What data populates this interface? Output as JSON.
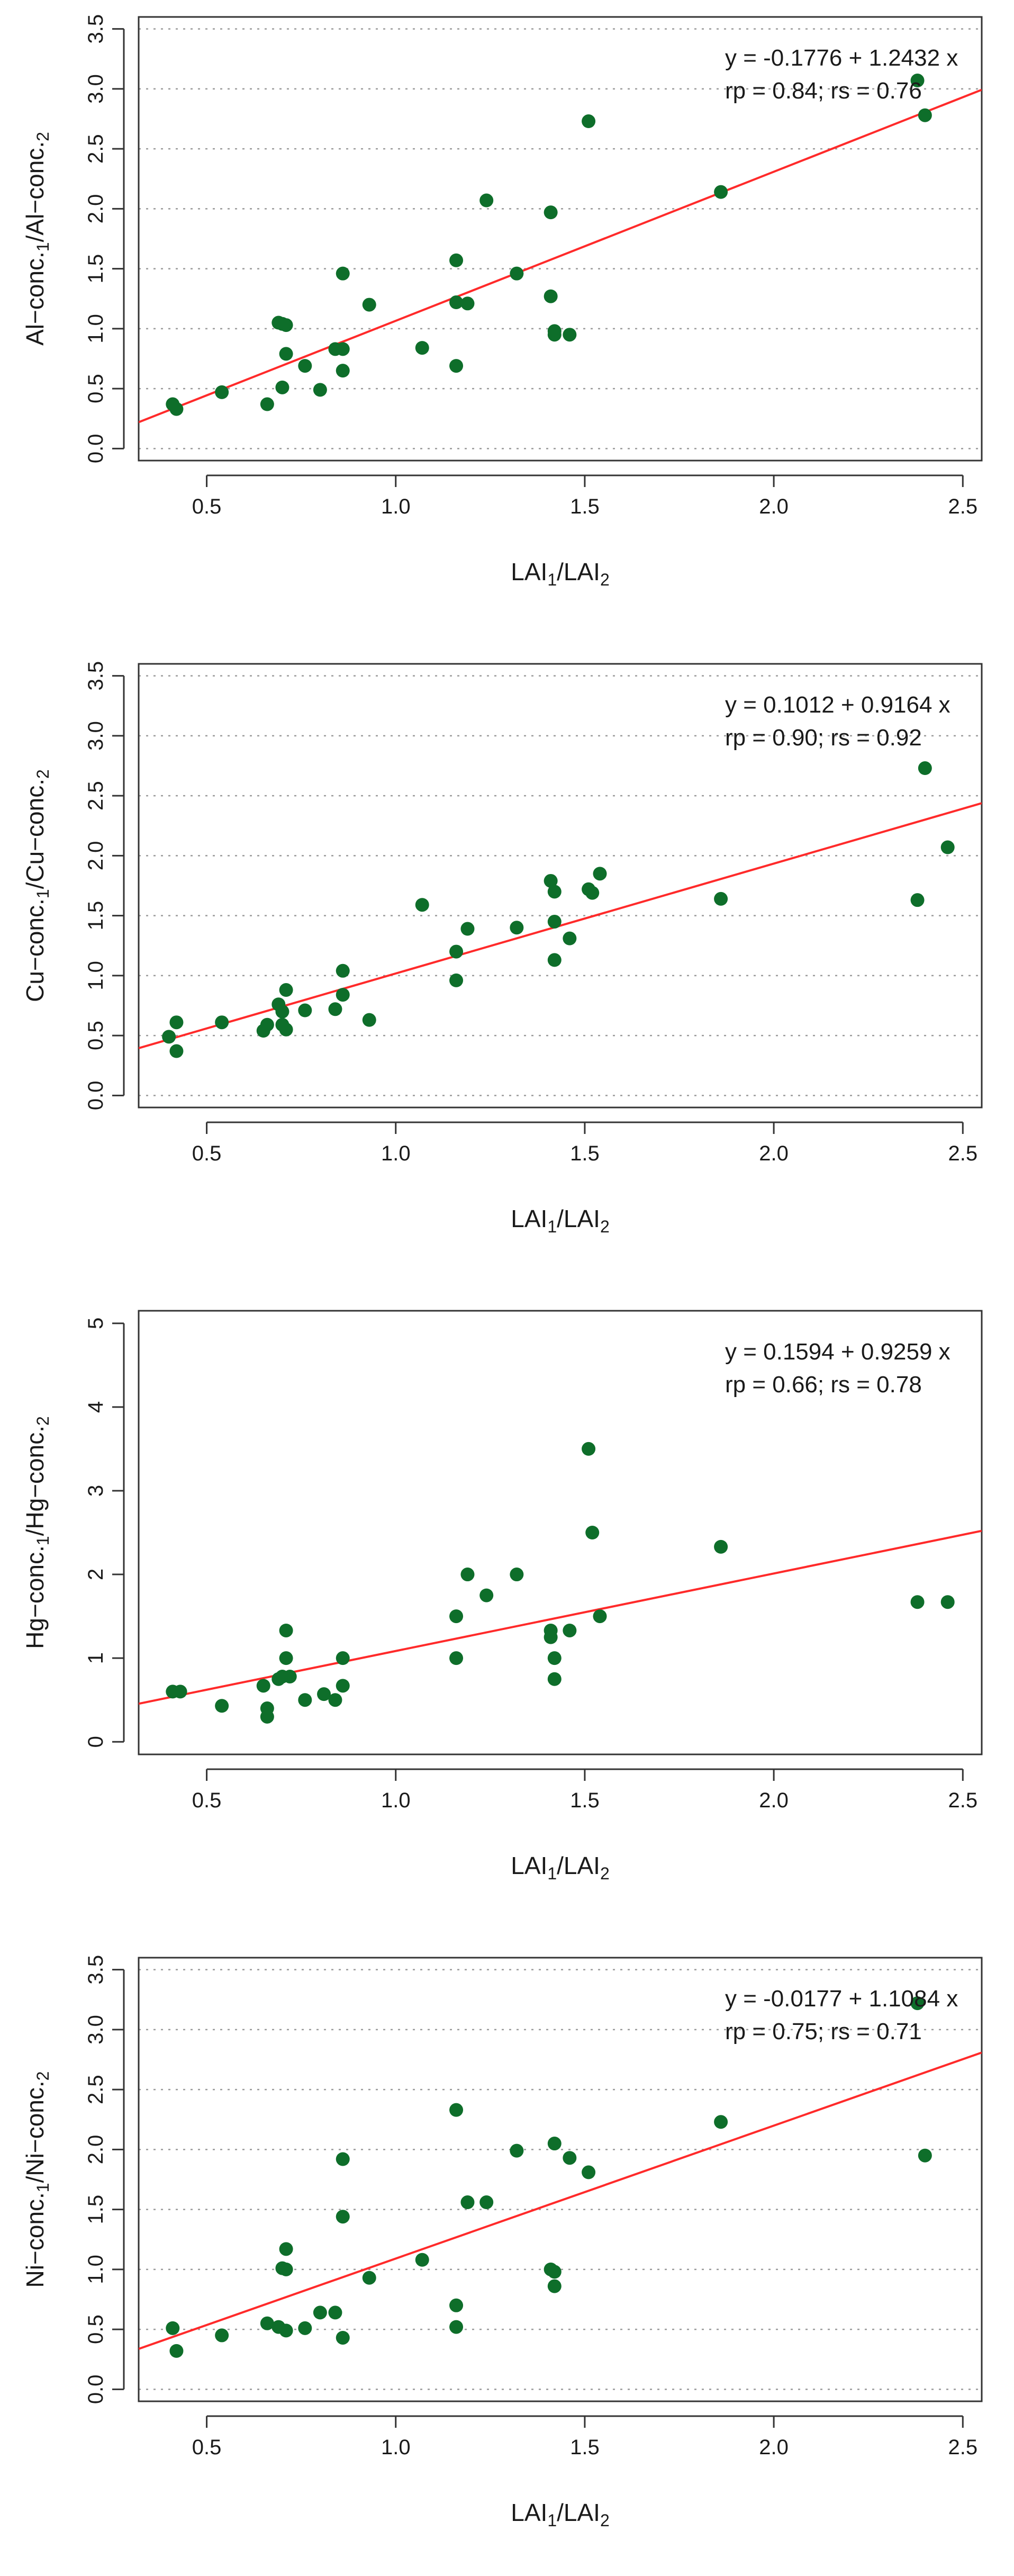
{
  "chart_data": [
    {
      "type": "scatter",
      "xlabel": {
        "base": "LAI",
        "num_sub": "1",
        "sep": "/",
        "den": "LAI",
        "den_sub": "2"
      },
      "ylabel": {
        "num": "Al−conc.",
        "num_sub": "1",
        "sep": "/",
        "den": "Al−conc.",
        "den_sub": "2"
      },
      "xlim": [
        0.32,
        2.55
      ],
      "ylim": [
        -0.1,
        3.6
      ],
      "x_ticks": [
        0.5,
        1.0,
        1.5,
        2.0,
        2.5
      ],
      "x_tick_labels": [
        "0.5",
        "1.0",
        "1.5",
        "2.0",
        "2.5"
      ],
      "y_ticks": [
        0.0,
        0.5,
        1.0,
        1.5,
        2.0,
        2.5,
        3.0,
        3.5
      ],
      "y_tick_labels": [
        "0.0",
        "0.5",
        "1.0",
        "1.5",
        "2.0",
        "2.5",
        "3.0",
        "3.5"
      ],
      "grid": "horizontal-dotted",
      "annotation": [
        "y = -0.1776 + 1.2432 x",
        "rp = 0.84; rs = 0.76"
      ],
      "fit": {
        "intercept": -0.1776,
        "slope": 1.2432
      },
      "points": [
        [
          0.41,
          0.37
        ],
        [
          0.42,
          0.33
        ],
        [
          0.54,
          0.47
        ],
        [
          0.66,
          0.37
        ],
        [
          0.69,
          1.05
        ],
        [
          0.7,
          1.04
        ],
        [
          0.71,
          1.03
        ],
        [
          0.7,
          0.51
        ],
        [
          0.71,
          0.79
        ],
        [
          0.76,
          0.69
        ],
        [
          0.8,
          0.49
        ],
        [
          0.84,
          0.83
        ],
        [
          0.86,
          0.83
        ],
        [
          0.86,
          0.65
        ],
        [
          0.86,
          1.46
        ],
        [
          0.93,
          1.2
        ],
        [
          1.07,
          0.84
        ],
        [
          1.16,
          1.57
        ],
        [
          1.16,
          1.22
        ],
        [
          1.16,
          0.69
        ],
        [
          1.19,
          1.21
        ],
        [
          1.24,
          2.07
        ],
        [
          1.32,
          1.46
        ],
        [
          1.41,
          1.97
        ],
        [
          1.41,
          1.27
        ],
        [
          1.42,
          0.98
        ],
        [
          1.42,
          0.95
        ],
        [
          1.46,
          0.95
        ],
        [
          1.51,
          2.73
        ],
        [
          1.86,
          2.14
        ],
        [
          2.38,
          3.07
        ],
        [
          2.4,
          2.78
        ]
      ]
    },
    {
      "type": "scatter",
      "xlabel": {
        "base": "LAI",
        "num_sub": "1",
        "sep": "/",
        "den": "LAI",
        "den_sub": "2"
      },
      "ylabel": {
        "num": "Cu−conc.",
        "num_sub": "1",
        "sep": "/",
        "den": "Cu−conc.",
        "den_sub": "2"
      },
      "xlim": [
        0.32,
        2.55
      ],
      "ylim": [
        -0.1,
        3.6
      ],
      "x_ticks": [
        0.5,
        1.0,
        1.5,
        2.0,
        2.5
      ],
      "x_tick_labels": [
        "0.5",
        "1.0",
        "1.5",
        "2.0",
        "2.5"
      ],
      "y_ticks": [
        0.0,
        0.5,
        1.0,
        1.5,
        2.0,
        2.5,
        3.0,
        3.5
      ],
      "y_tick_labels": [
        "0.0",
        "0.5",
        "1.0",
        "1.5",
        "2.0",
        "2.5",
        "3.0",
        "3.5"
      ],
      "grid": "horizontal-dotted",
      "annotation": [
        "y = 0.1012 + 0.9164 x",
        "rp = 0.90; rs = 0.92"
      ],
      "fit": {
        "intercept": 0.1012,
        "slope": 0.9164
      },
      "points": [
        [
          0.4,
          0.49
        ],
        [
          0.42,
          0.61
        ],
        [
          0.42,
          0.37
        ],
        [
          0.54,
          0.61
        ],
        [
          0.65,
          0.54
        ],
        [
          0.66,
          0.59
        ],
        [
          0.69,
          0.76
        ],
        [
          0.7,
          0.7
        ],
        [
          0.7,
          0.59
        ],
        [
          0.71,
          0.88
        ],
        [
          0.71,
          0.55
        ],
        [
          0.76,
          0.71
        ],
        [
          0.84,
          0.72
        ],
        [
          0.86,
          1.04
        ],
        [
          0.86,
          0.84
        ],
        [
          0.93,
          0.63
        ],
        [
          1.07,
          1.59
        ],
        [
          1.16,
          1.2
        ],
        [
          1.16,
          0.96
        ],
        [
          1.19,
          1.39
        ],
        [
          1.32,
          1.4
        ],
        [
          1.41,
          1.79
        ],
        [
          1.42,
          1.7
        ],
        [
          1.42,
          1.45
        ],
        [
          1.42,
          1.13
        ],
        [
          1.46,
          1.31
        ],
        [
          1.51,
          1.72
        ],
        [
          1.52,
          1.69
        ],
        [
          1.54,
          1.85
        ],
        [
          1.86,
          1.64
        ],
        [
          2.38,
          1.63
        ],
        [
          2.4,
          2.73
        ],
        [
          2.46,
          2.07
        ]
      ]
    },
    {
      "type": "scatter",
      "xlabel": {
        "base": "LAI",
        "num_sub": "1",
        "sep": "/",
        "den": "LAI",
        "den_sub": "2"
      },
      "ylabel": {
        "num": "Hg−conc.",
        "num_sub": "1",
        "sep": "/",
        "den": "Hg−conc.",
        "den_sub": "2"
      },
      "xlim": [
        0.32,
        2.55
      ],
      "ylim": [
        -0.15,
        5.15
      ],
      "x_ticks": [
        0.5,
        1.0,
        1.5,
        2.0,
        2.5
      ],
      "x_tick_labels": [
        "0.5",
        "1.0",
        "1.5",
        "2.0",
        "2.5"
      ],
      "y_ticks": [
        0,
        1,
        2,
        3,
        4,
        5
      ],
      "y_tick_labels": [
        "0",
        "1",
        "2",
        "3",
        "4",
        "5"
      ],
      "grid": "none",
      "annotation": [
        "y = 0.1594 + 0.9259 x",
        "rp = 0.66; rs = 0.78"
      ],
      "fit": {
        "intercept": 0.1594,
        "slope": 0.9259
      },
      "points": [
        [
          0.41,
          0.6
        ],
        [
          0.43,
          0.6
        ],
        [
          0.54,
          0.43
        ],
        [
          0.65,
          0.67
        ],
        [
          0.66,
          0.4
        ],
        [
          0.66,
          0.3
        ],
        [
          0.69,
          0.75
        ],
        [
          0.7,
          0.78
        ],
        [
          0.71,
          1.33
        ],
        [
          0.71,
          1.0
        ],
        [
          0.72,
          0.78
        ],
        [
          0.76,
          0.5
        ],
        [
          0.81,
          0.57
        ],
        [
          0.84,
          0.5
        ],
        [
          0.86,
          1.0
        ],
        [
          0.86,
          0.67
        ],
        [
          1.16,
          1.5
        ],
        [
          1.16,
          1.0
        ],
        [
          1.19,
          2.0
        ],
        [
          1.24,
          1.75
        ],
        [
          1.32,
          2.0
        ],
        [
          1.41,
          1.33
        ],
        [
          1.41,
          1.25
        ],
        [
          1.42,
          1.0
        ],
        [
          1.42,
          0.75
        ],
        [
          1.46,
          1.33
        ],
        [
          1.51,
          3.5
        ],
        [
          1.52,
          2.5
        ],
        [
          1.54,
          1.5
        ],
        [
          1.86,
          2.33
        ],
        [
          2.38,
          1.67
        ],
        [
          2.46,
          1.67
        ]
      ]
    },
    {
      "type": "scatter",
      "xlabel": {
        "base": "LAI",
        "num_sub": "1",
        "sep": "/",
        "den": "LAI",
        "den_sub": "2"
      },
      "ylabel": {
        "num": "Ni−conc.",
        "num_sub": "1",
        "sep": "/",
        "den": "Ni−conc.",
        "den_sub": "2"
      },
      "xlim": [
        0.32,
        2.55
      ],
      "ylim": [
        -0.1,
        3.6
      ],
      "x_ticks": [
        0.5,
        1.0,
        1.5,
        2.0,
        2.5
      ],
      "x_tick_labels": [
        "0.5",
        "1.0",
        "1.5",
        "2.0",
        "2.5"
      ],
      "y_ticks": [
        0.0,
        0.5,
        1.0,
        1.5,
        2.0,
        2.5,
        3.0,
        3.5
      ],
      "y_tick_labels": [
        "0.0",
        "0.5",
        "1.0",
        "1.5",
        "2.0",
        "2.5",
        "3.0",
        "3.5"
      ],
      "grid": "horizontal-dotted",
      "annotation": [
        "y = -0.0177 + 1.1084 x",
        "rp = 0.75; rs = 0.71"
      ],
      "fit": {
        "intercept": -0.0177,
        "slope": 1.1084
      },
      "points": [
        [
          0.41,
          0.51
        ],
        [
          0.42,
          0.32
        ],
        [
          0.54,
          0.45
        ],
        [
          0.66,
          0.55
        ],
        [
          0.69,
          0.52
        ],
        [
          0.7,
          1.01
        ],
        [
          0.71,
          1.17
        ],
        [
          0.71,
          1.0
        ],
        [
          0.71,
          0.49
        ],
        [
          0.76,
          0.51
        ],
        [
          0.8,
          0.64
        ],
        [
          0.84,
          0.64
        ],
        [
          0.86,
          1.92
        ],
        [
          0.86,
          1.44
        ],
        [
          0.86,
          0.43
        ],
        [
          0.93,
          0.93
        ],
        [
          1.07,
          1.08
        ],
        [
          1.16,
          2.33
        ],
        [
          1.16,
          0.7
        ],
        [
          1.16,
          0.52
        ],
        [
          1.19,
          1.56
        ],
        [
          1.24,
          1.56
        ],
        [
          1.32,
          1.99
        ],
        [
          1.41,
          1.0
        ],
        [
          1.42,
          2.05
        ],
        [
          1.42,
          0.98
        ],
        [
          1.42,
          0.86
        ],
        [
          1.46,
          1.93
        ],
        [
          1.51,
          1.81
        ],
        [
          1.86,
          2.23
        ],
        [
          2.38,
          3.22
        ],
        [
          2.4,
          1.95
        ]
      ]
    }
  ]
}
